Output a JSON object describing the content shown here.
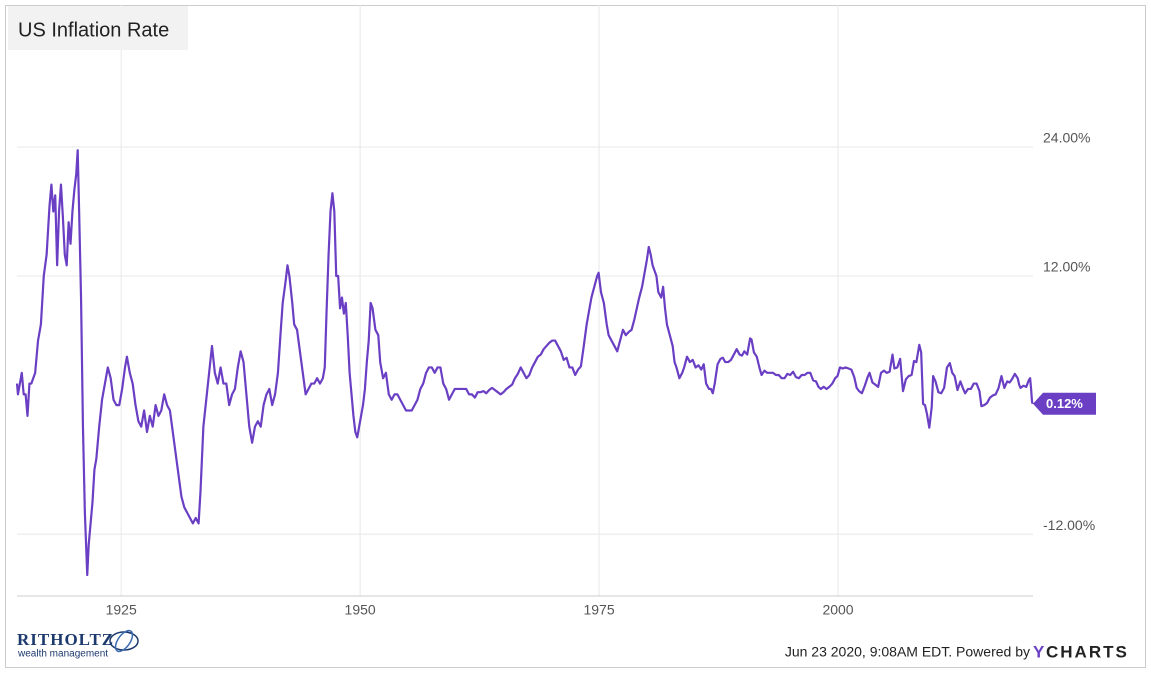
{
  "chart_data": {
    "type": "line",
    "title": "US Inflation Rate",
    "x": [
      1914.1,
      1914.2,
      1914.4,
      1914.6,
      1914.8,
      1915.0,
      1915.2,
      1915.4,
      1915.6,
      1915.8,
      1916.0,
      1916.3,
      1916.6,
      1916.9,
      1917.2,
      1917.5,
      1917.7,
      1917.9,
      1918.1,
      1918.3,
      1918.5,
      1918.7,
      1918.9,
      1919.1,
      1919.3,
      1919.5,
      1919.7,
      1919.9,
      1920.1,
      1920.3,
      1920.45,
      1920.6,
      1920.8,
      1921.0,
      1921.2,
      1921.45,
      1921.6,
      1921.8,
      1922.0,
      1922.2,
      1922.4,
      1922.7,
      1923.0,
      1923.3,
      1923.6,
      1923.9,
      1924.2,
      1924.5,
      1924.8,
      1925.1,
      1925.4,
      1925.6,
      1925.9,
      1926.2,
      1926.5,
      1926.8,
      1927.1,
      1927.4,
      1927.7,
      1928.0,
      1928.3,
      1928.6,
      1928.9,
      1929.2,
      1929.5,
      1929.8,
      1930.1,
      1930.4,
      1930.7,
      1931.0,
      1931.3,
      1931.6,
      1931.9,
      1932.2,
      1932.5,
      1932.8,
      1933.1,
      1933.3,
      1933.6,
      1933.9,
      1934.2,
      1934.5,
      1934.8,
      1935.1,
      1935.4,
      1935.7,
      1936.0,
      1936.3,
      1936.6,
      1936.9,
      1937.2,
      1937.5,
      1937.8,
      1938.1,
      1938.4,
      1938.7,
      1939.0,
      1939.3,
      1939.6,
      1939.9,
      1940.2,
      1940.5,
      1940.8,
      1941.1,
      1941.4,
      1941.7,
      1941.9,
      1942.2,
      1942.4,
      1942.6,
      1942.9,
      1943.1,
      1943.4,
      1943.7,
      1944.0,
      1944.3,
      1944.6,
      1944.9,
      1945.2,
      1945.5,
      1945.8,
      1946.1,
      1946.3,
      1946.5,
      1946.7,
      1946.9,
      1947.1,
      1947.3,
      1947.5,
      1947.7,
      1947.9,
      1948.1,
      1948.3,
      1948.5,
      1948.7,
      1948.9,
      1949.1,
      1949.3,
      1949.5,
      1949.7,
      1949.9,
      1950.1,
      1950.3,
      1950.5,
      1950.7,
      1950.9,
      1951.1,
      1951.3,
      1951.6,
      1951.9,
      1952.1,
      1952.4,
      1952.7,
      1953.0,
      1953.3,
      1953.6,
      1953.9,
      1954.2,
      1954.5,
      1954.8,
      1955.1,
      1955.4,
      1955.7,
      1956.0,
      1956.3,
      1956.6,
      1956.9,
      1957.2,
      1957.5,
      1957.8,
      1958.1,
      1958.4,
      1958.7,
      1959.0,
      1959.3,
      1959.6,
      1959.9,
      1960.2,
      1960.5,
      1960.8,
      1961.1,
      1961.4,
      1961.7,
      1962.0,
      1962.3,
      1962.6,
      1962.9,
      1963.2,
      1963.5,
      1963.8,
      1964.1,
      1964.4,
      1964.7,
      1965.0,
      1965.3,
      1965.6,
      1965.9,
      1966.2,
      1966.5,
      1966.8,
      1967.1,
      1967.4,
      1967.7,
      1968.0,
      1968.3,
      1968.6,
      1968.9,
      1969.2,
      1969.5,
      1969.8,
      1970.1,
      1970.4,
      1970.7,
      1971.0,
      1971.3,
      1971.6,
      1971.9,
      1972.2,
      1972.5,
      1972.8,
      1973.1,
      1973.4,
      1973.7,
      1973.9,
      1974.2,
      1974.5,
      1974.8,
      1974.95,
      1975.2,
      1975.5,
      1975.8,
      1976.0,
      1976.3,
      1976.6,
      1976.9,
      1977.2,
      1977.5,
      1977.8,
      1978.1,
      1978.4,
      1978.7,
      1978.95,
      1979.2,
      1979.5,
      1979.8,
      1980.0,
      1980.2,
      1980.4,
      1980.6,
      1980.8,
      1981.0,
      1981.2,
      1981.5,
      1981.7,
      1981.9,
      1982.1,
      1982.4,
      1982.7,
      1982.9,
      1983.1,
      1983.4,
      1983.7,
      1983.9,
      1984.2,
      1984.5,
      1984.8,
      1985.1,
      1985.4,
      1985.7,
      1985.95,
      1986.2,
      1986.5,
      1986.7,
      1986.9,
      1987.1,
      1987.4,
      1987.7,
      1987.95,
      1988.2,
      1988.5,
      1988.8,
      1989.1,
      1989.4,
      1989.7,
      1989.95,
      1990.2,
      1990.5,
      1990.8,
      1990.95,
      1991.2,
      1991.5,
      1991.8,
      1992.0,
      1992.3,
      1992.6,
      1992.9,
      1993.2,
      1993.5,
      1993.8,
      1994.1,
      1994.4,
      1994.7,
      1995.0,
      1995.3,
      1995.6,
      1995.9,
      1996.2,
      1996.5,
      1996.8,
      1997.1,
      1997.4,
      1997.7,
      1997.95,
      1998.2,
      1998.5,
      1998.8,
      1999.1,
      1999.4,
      1999.7,
      1999.95,
      2000.2,
      2000.5,
      2000.8,
      2001.1,
      2001.4,
      2001.7,
      2001.95,
      2002.2,
      2002.5,
      2002.8,
      2003.1,
      2003.3,
      2003.6,
      2003.9,
      2004.2,
      2004.5,
      2004.8,
      2005.1,
      2005.4,
      2005.7,
      2005.9,
      2006.2,
      2006.5,
      2006.8,
      2007.1,
      2007.4,
      2007.7,
      2007.95,
      2008.2,
      2008.5,
      2008.7,
      2008.9,
      2009.1,
      2009.3,
      2009.55,
      2009.8,
      2009.95,
      2010.2,
      2010.5,
      2010.8,
      2011.1,
      2011.4,
      2011.7,
      2011.95,
      2012.2,
      2012.5,
      2012.8,
      2013.1,
      2013.3,
      2013.6,
      2013.9,
      2014.2,
      2014.5,
      2014.8,
      2015.0,
      2015.3,
      2015.6,
      2015.9,
      2016.2,
      2016.5,
      2016.8,
      2017.1,
      2017.4,
      2017.7,
      2017.95,
      2018.2,
      2018.5,
      2018.8,
      2018.95,
      2019.1,
      2019.4,
      2019.7,
      2019.95,
      2020.1,
      2020.2,
      2020.3,
      2020.37
    ],
    "series": [
      {
        "name": "US Inflation Rate",
        "color": "#6a3fc4",
        "values": [
          2.0,
          1.0,
          2.0,
          3.0,
          1.0,
          1.0,
          -1.0,
          2.0,
          2.0,
          2.5,
          3.0,
          6.0,
          7.5,
          12.0,
          14.0,
          18.5,
          20.5,
          18.0,
          19.5,
          13.0,
          18.0,
          20.5,
          17.5,
          14.0,
          13.0,
          17.0,
          15.0,
          18.0,
          20.0,
          21.5,
          23.7,
          18.0,
          10.0,
          -2.0,
          -10.0,
          -15.8,
          -13.0,
          -11.0,
          -9.0,
          -6.0,
          -5.0,
          -2.0,
          0.5,
          2.0,
          3.5,
          2.5,
          0.5,
          0.0,
          0.0,
          1.5,
          3.5,
          4.5,
          3.0,
          2.0,
          0.0,
          -1.5,
          -2.0,
          -0.5,
          -2.5,
          -1.0,
          -2.0,
          0.0,
          -1.0,
          -0.5,
          1.0,
          0.0,
          -0.5,
          -2.5,
          -4.5,
          -6.5,
          -8.5,
          -9.5,
          -10.0,
          -10.5,
          -11.0,
          -10.5,
          -11.0,
          -8.0,
          -2.0,
          0.5,
          3.0,
          5.5,
          3.0,
          2.0,
          3.5,
          2.0,
          2.0,
          0.0,
          1.0,
          1.5,
          3.5,
          5.0,
          4.0,
          1.0,
          -2.0,
          -3.5,
          -2.0,
          -1.5,
          -2.0,
          0.0,
          1.0,
          1.5,
          0.0,
          1.0,
          3.0,
          7.0,
          9.5,
          11.5,
          13.0,
          12.0,
          9.5,
          7.5,
          7.0,
          5.0,
          3.0,
          1.0,
          1.5,
          2.0,
          2.0,
          2.5,
          2.0,
          2.5,
          3.5,
          9.0,
          14.0,
          18.0,
          19.7,
          18.0,
          12.0,
          12.0,
          9.0,
          10.0,
          8.5,
          9.5,
          6.5,
          3.0,
          1.0,
          -1.0,
          -2.5,
          -3.0,
          -2.0,
          -1.0,
          0.0,
          1.5,
          4.0,
          6.0,
          9.5,
          9.0,
          7.0,
          6.5,
          4.0,
          2.5,
          3.0,
          1.0,
          0.5,
          1.0,
          1.0,
          0.5,
          0.0,
          -0.5,
          -0.5,
          -0.5,
          0.0,
          0.5,
          1.5,
          2.0,
          3.0,
          3.5,
          3.5,
          3.0,
          3.5,
          3.5,
          2.0,
          1.5,
          0.5,
          1.0,
          1.5,
          1.5,
          1.5,
          1.5,
          1.5,
          1.0,
          1.0,
          0.7,
          1.2,
          1.2,
          1.3,
          1.1,
          1.4,
          1.6,
          1.4,
          1.2,
          1.0,
          1.2,
          1.5,
          1.7,
          1.9,
          2.5,
          2.9,
          3.5,
          3.0,
          2.5,
          2.8,
          3.5,
          4.0,
          4.5,
          4.7,
          5.2,
          5.5,
          5.8,
          6.0,
          6.0,
          5.5,
          5.0,
          4.2,
          4.4,
          3.5,
          3.5,
          2.8,
          3.3,
          3.6,
          5.5,
          7.5,
          8.5,
          10.0,
          11.0,
          12.0,
          12.3,
          10.5,
          9.5,
          7.5,
          6.5,
          6.0,
          5.5,
          5.0,
          6.0,
          7.0,
          6.5,
          6.8,
          7.0,
          8.0,
          9.0,
          10.0,
          11.0,
          12.5,
          13.5,
          14.7,
          14.0,
          13.0,
          12.5,
          12.0,
          10.5,
          10.0,
          11.0,
          9.0,
          7.5,
          6.5,
          5.5,
          4.0,
          3.5,
          2.5,
          3.0,
          3.5,
          4.5,
          4.0,
          4.2,
          3.5,
          3.7,
          3.3,
          3.8,
          2.0,
          1.5,
          1.5,
          1.1,
          2.0,
          3.8,
          4.3,
          4.4,
          4.0,
          4.0,
          4.2,
          4.7,
          5.2,
          4.7,
          4.6,
          5.0,
          4.7,
          6.2,
          6.1,
          4.9,
          4.5,
          3.4,
          2.8,
          3.2,
          3.0,
          3.0,
          3.0,
          2.8,
          2.8,
          2.5,
          2.5,
          2.9,
          2.8,
          3.1,
          2.6,
          2.5,
          2.8,
          2.8,
          3.0,
          3.0,
          2.3,
          2.2,
          1.7,
          1.5,
          1.7,
          1.5,
          1.7,
          2.0,
          2.5,
          2.7,
          3.5,
          3.4,
          3.5,
          3.4,
          3.3,
          2.6,
          1.6,
          1.3,
          1.1,
          1.8,
          2.6,
          3.0,
          2.1,
          1.9,
          1.7,
          3.0,
          3.2,
          3.0,
          3.1,
          4.7,
          3.4,
          3.5,
          4.3,
          1.3,
          2.4,
          2.7,
          2.8,
          4.1,
          4.0,
          5.6,
          4.9,
          0.1,
          0.0,
          -0.8,
          -2.1,
          -0.2,
          2.7,
          2.2,
          1.2,
          1.1,
          1.6,
          3.5,
          3.9,
          3.0,
          2.7,
          1.4,
          2.2,
          1.5,
          1.1,
          1.5,
          1.5,
          2.0,
          2.0,
          1.3,
          -0.1,
          0.0,
          0.2,
          0.7,
          0.9,
          1.0,
          1.6,
          2.7,
          1.6,
          2.2,
          2.1,
          2.4,
          2.9,
          2.5,
          1.9,
          1.6,
          1.8,
          1.7,
          2.3,
          2.5,
          1.5,
          0.3,
          0.12
        ]
      }
    ],
    "last_label": {
      "value": 0.12,
      "label": "0.12%"
    },
    "xlim": [
      1914.1,
      2020.4
    ],
    "ylim": [
      -17.75,
      37.2
    ],
    "xticks": [
      1925,
      1950,
      1975,
      2000
    ],
    "yticks": [
      {
        "value": -12,
        "label": "-12.00%"
      },
      {
        "value": 12,
        "label": "12.00%"
      },
      {
        "value": 24,
        "label": "24.00%"
      }
    ],
    "grid": true
  },
  "footer": {
    "logo_name": "RITHOLTZ",
    "logo_tagline": "wealth management",
    "timestamp": "Jun 23 2020, 9:08AM EDT. Powered by",
    "brand_y": "Y",
    "brand_rest": "CHARTS"
  }
}
